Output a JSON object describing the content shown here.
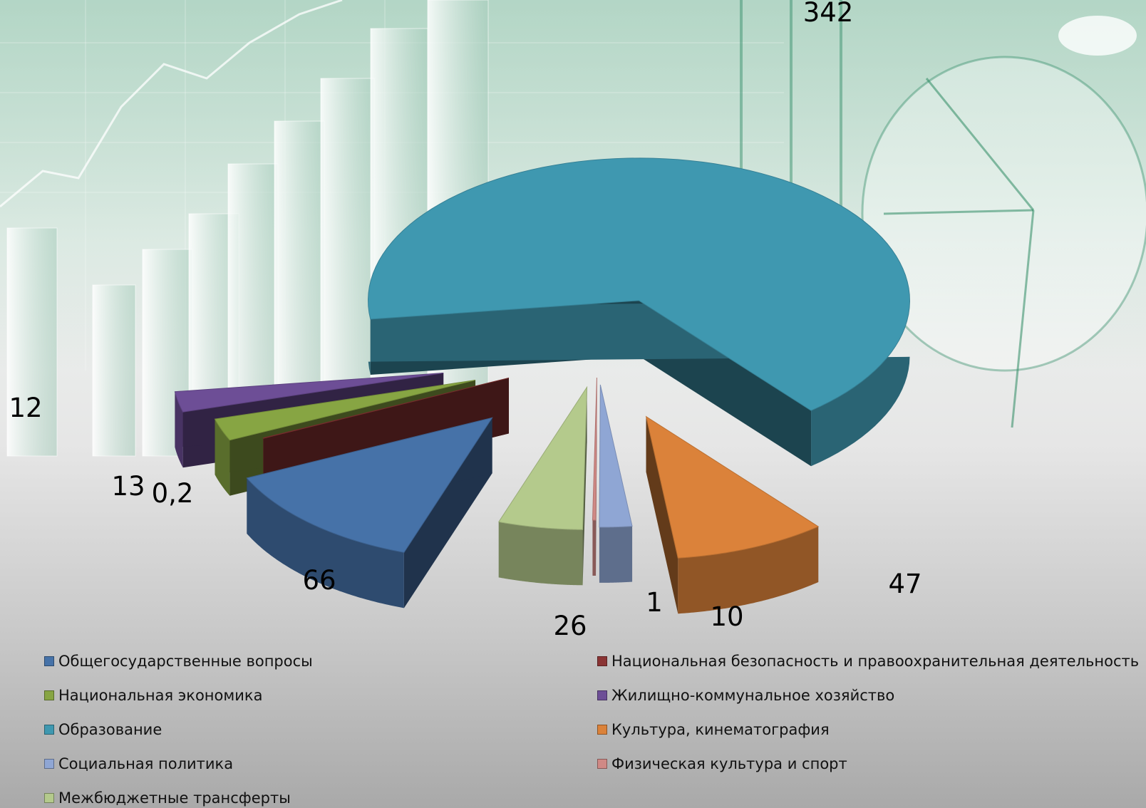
{
  "chart_data": {
    "type": "pie",
    "variant": "3d-exploded",
    "legend_position": "bottom",
    "series": [
      {
        "name": "Общегосударственные вопросы",
        "value": 66,
        "label": "66",
        "color": "#4672a8"
      },
      {
        "name": "Национальная безопасность и правоохранительная деятельность",
        "value": 0.2,
        "label": "0,2",
        "color": "#8a3434"
      },
      {
        "name": "Национальная экономика",
        "value": 13,
        "label": "13",
        "color": "#87a543"
      },
      {
        "name": "Жилищно-коммунальное хозяйство",
        "value": 12,
        "label": "12",
        "color": "#6d4e96"
      },
      {
        "name": "Образование",
        "value": 342,
        "label": "342",
        "color": "#3f98b0"
      },
      {
        "name": "Культура, кинематография",
        "value": 47,
        "label": "47",
        "color": "#db823a"
      },
      {
        "name": "Социальная политика",
        "value": 10,
        "label": "10",
        "color": "#8fa6d4"
      },
      {
        "name": "Физическая культура и спорт",
        "value": 1,
        "label": "1",
        "color": "#d08985"
      },
      {
        "name": "Межбюджетные трансферты",
        "value": 26,
        "label": "26",
        "color": "#b4ca8c"
      }
    ]
  }
}
